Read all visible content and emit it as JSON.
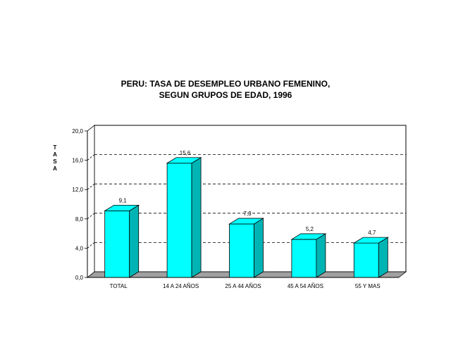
{
  "chart_data": {
    "type": "bar",
    "title": [
      "PERU:  TASA DE DESEMPLEO URBANO FEMENINO,",
      "SEGUN GRUPOS DE EDAD, 1996"
    ],
    "ylabel": "TASA",
    "xlabel": "",
    "categories": [
      "TOTAL",
      "14 A 24 AÑOS",
      "25 A 44 AÑOS",
      "45 A 54 AÑOS",
      "55 Y MAS"
    ],
    "values": [
      9.1,
      15.6,
      7.3,
      5.2,
      4.7
    ],
    "data_labels": [
      "9,1",
      "15,6",
      "7,3",
      "5,2",
      "4,7"
    ],
    "ylim": [
      0,
      20
    ],
    "yticks": [
      "0,0",
      "4,0",
      "8,0",
      "12,0",
      "16,0",
      "20,0"
    ],
    "ytick_values": [
      0,
      4,
      8,
      12,
      16,
      20
    ],
    "grid": "dashed horizontal",
    "bar_color": "#00ffff",
    "bar_side_color": "#00b4b4",
    "floor_color": "#a0a0a0"
  }
}
